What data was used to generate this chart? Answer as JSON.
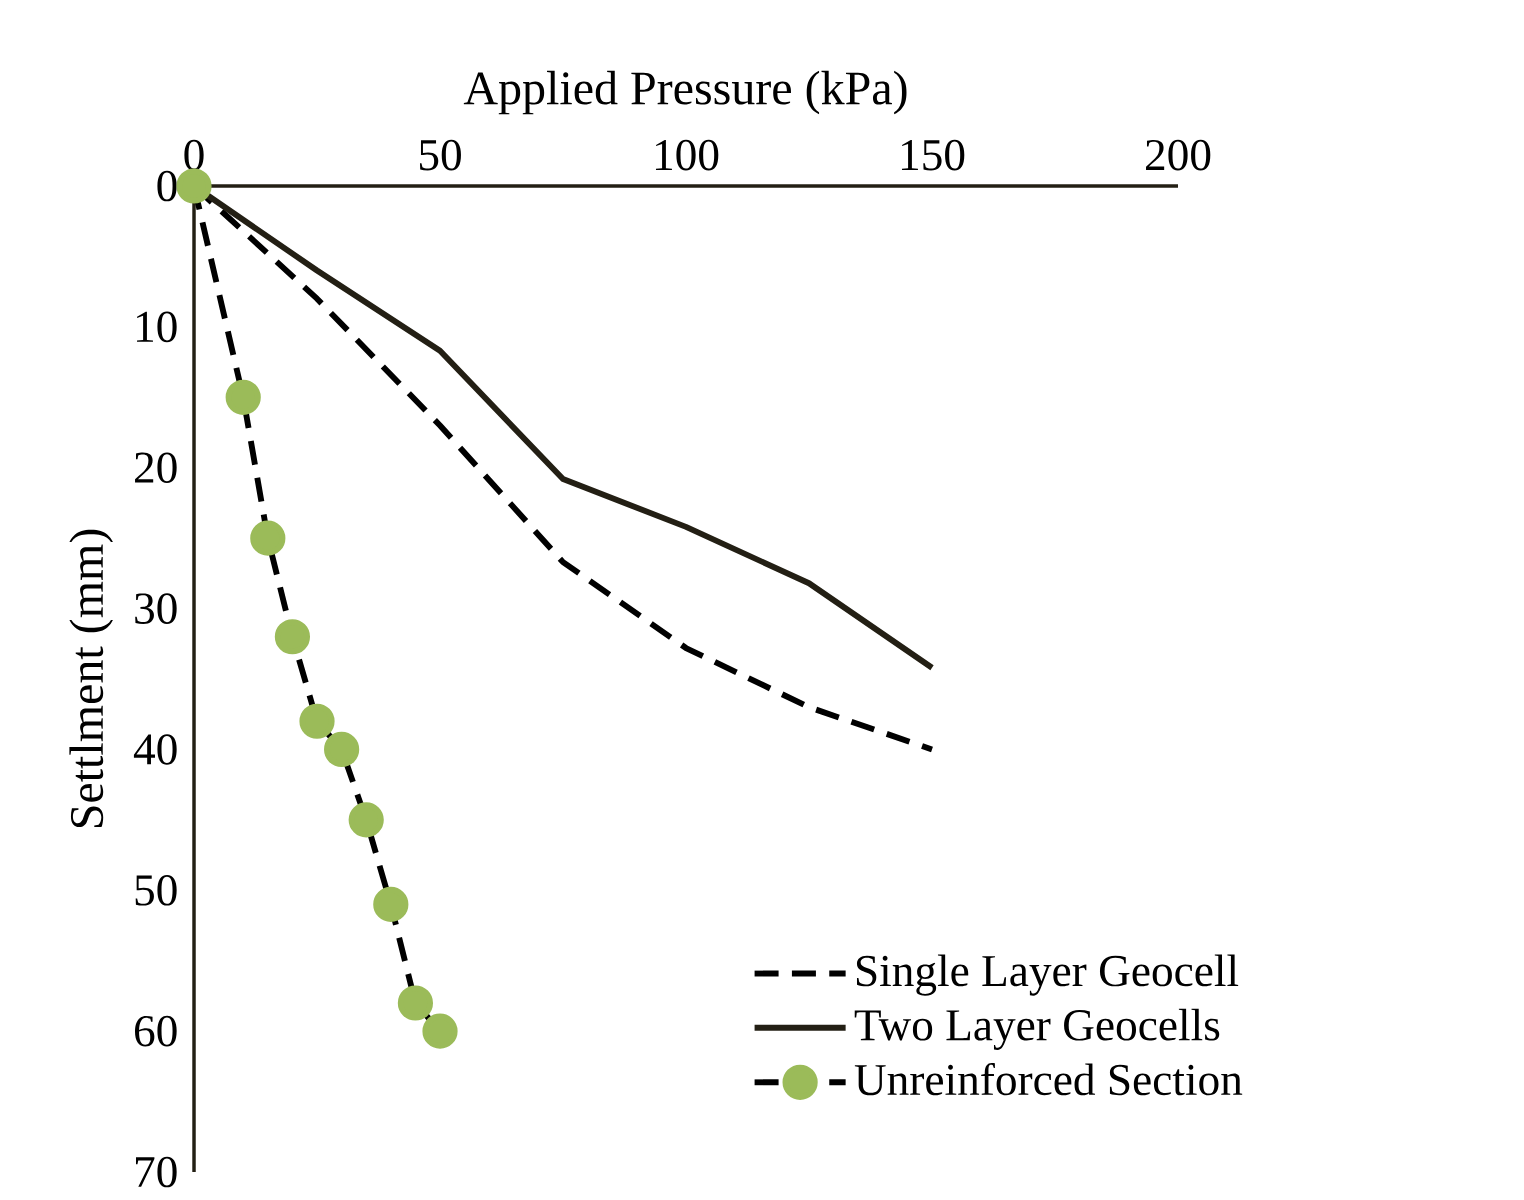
{
  "chart_data": {
    "type": "line",
    "xlabel": "Applied Pressure (kPa)",
    "ylabel": "Settlment (mm)",
    "xlim": [
      0,
      200
    ],
    "xticks": [
      0,
      50,
      100,
      150,
      200
    ],
    "ylim": [
      70,
      0
    ],
    "yticks": [
      0,
      10,
      20,
      30,
      40,
      50,
      60,
      70
    ],
    "grid": false,
    "legend": "bottom right",
    "series": [
      {
        "name": "Single Layer Geocell",
        "color": "#000000",
        "line_style": "dashed",
        "marker": "none",
        "x": [
          0,
          25,
          50,
          75,
          100,
          125,
          150
        ],
        "values": [
          0,
          8,
          17,
          26.7,
          32.8,
          37,
          40
        ]
      },
      {
        "name": "Two Layer Geocells",
        "color": "#231f14",
        "line_style": "solid",
        "marker": "none",
        "x": [
          0,
          25,
          50,
          75,
          100,
          125,
          150
        ],
        "values": [
          0,
          6,
          11.7,
          20.8,
          24.2,
          28.2,
          34.2
        ]
      },
      {
        "name": "Unreinforced Section",
        "color": "#9bbb59",
        "line_style": "dashed",
        "marker": "circle",
        "x": [
          0,
          10,
          15,
          20,
          25,
          30,
          35,
          40,
          45,
          50
        ],
        "values": [
          0,
          15,
          25,
          32,
          38,
          40,
          45,
          51,
          58,
          60
        ]
      }
    ]
  }
}
